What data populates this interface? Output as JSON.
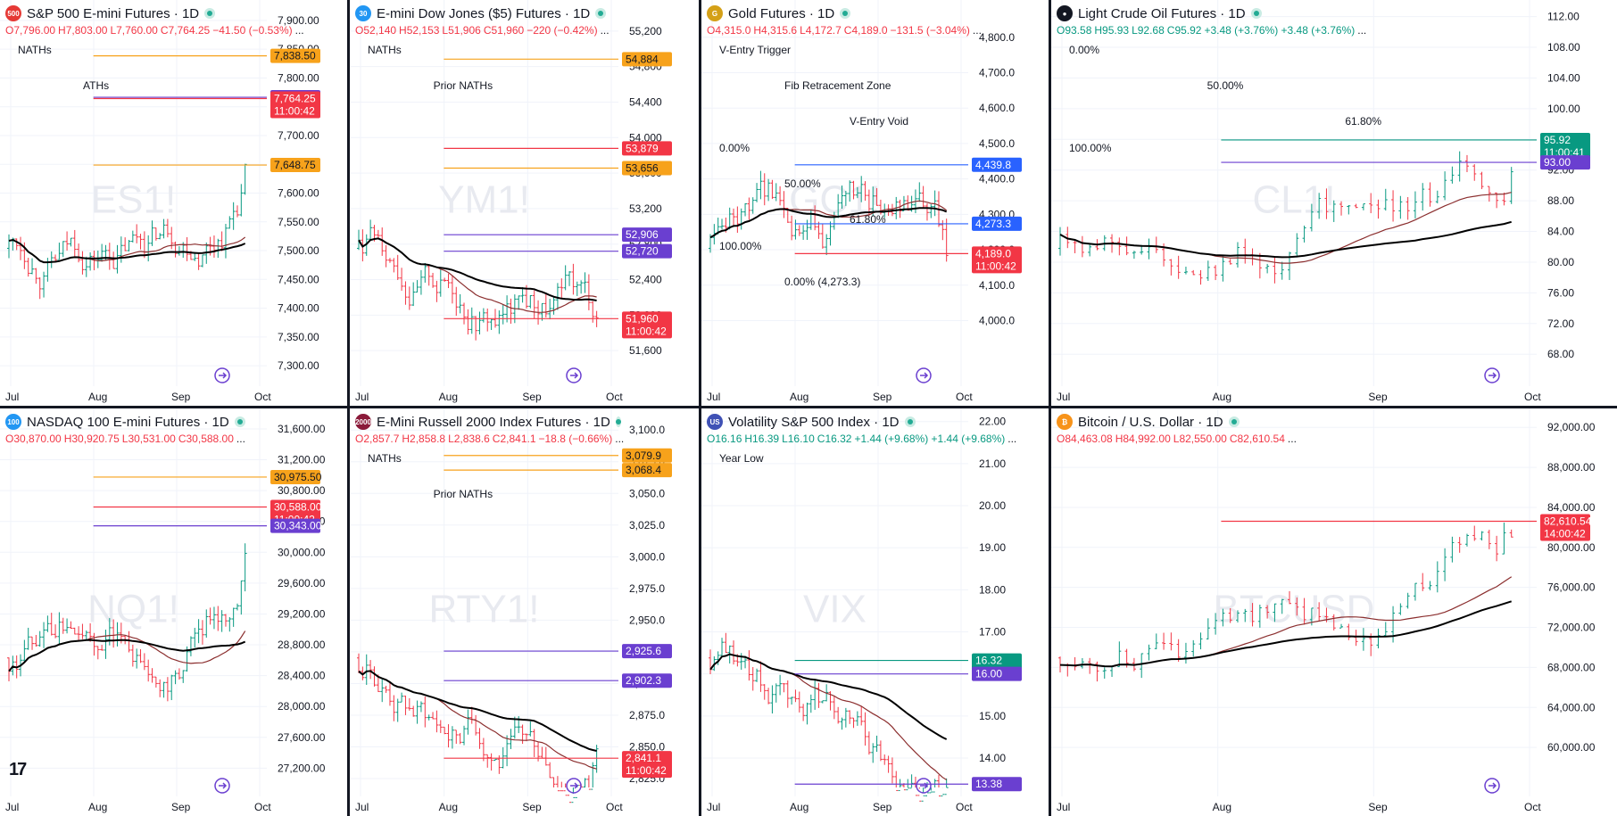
{
  "panels": [
    {
      "id": "es",
      "title": "S&P 500 E-mini Futures · 1D",
      "icon_text": "500",
      "icon_color": "#e53935",
      "ohlc": {
        "o": "O7,796.00",
        "h": "H7,803.00",
        "l": "L7,760.00",
        "c": "C7,764.25",
        "chg": "−41.50 (−0.53%)",
        "dir": "neg"
      },
      "watermark": "ES1!",
      "price_labels": [
        "7,900.00",
        "7,850.00",
        "7,800.00",
        "7,750.00",
        "7,700.00",
        "7,650.00",
        "7,600.00",
        "7,550.00",
        "7,500.00",
        "7,450.00",
        "7,400.00",
        "7,350.00",
        "7,300.00"
      ],
      "yrange": [
        7280,
        7920
      ],
      "time_labels": [
        "Jul",
        "Aug",
        "Sep",
        "Oct"
      ],
      "badges": [
        {
          "value": 7838.5,
          "text": "7,838.50",
          "color": "#f7a21b",
          "textcolor": "#131722"
        },
        {
          "value": 7766.5,
          "text": "7,766.50",
          "color": "#6a3fd0",
          "textcolor": "#ffffff"
        },
        {
          "value": 7764.25,
          "text": "7,764.25",
          "sub": "11:00:42",
          "color": "#f23645",
          "textcolor": "#ffffff"
        },
        {
          "value": 7648.75,
          "text": "7,648.75",
          "color": "#f7a21b",
          "textcolor": "#131722"
        }
      ],
      "annotations": [
        {
          "text": "NATHs"
        },
        {
          "text": "ATHs"
        }
      ]
    },
    {
      "id": "ym",
      "title": "E-mini Dow Jones ($5) Futures · 1D",
      "icon_text": "30",
      "icon_color": "#2196f3",
      "ohlc": {
        "o": "O52,140",
        "h": "H52,153",
        "l": "L51,906",
        "c": "C51,960",
        "chg": "−220 (−0.42%)",
        "dir": "neg"
      },
      "watermark": "YM1!",
      "price_labels": [
        "55,200",
        "54,800",
        "54,400",
        "54,000",
        "53,600",
        "53,200",
        "52,800",
        "52,400",
        "52,000",
        "51,600"
      ],
      "yrange": [
        51300,
        55450
      ],
      "time_labels": [
        "Jul",
        "Aug",
        "Sep",
        "Oct"
      ],
      "badges": [
        {
          "value": 54884,
          "text": "54,884",
          "color": "#f7a21b",
          "textcolor": "#131722"
        },
        {
          "value": 53879,
          "text": "53,879",
          "color": "#f23645",
          "textcolor": "#ffffff"
        },
        {
          "value": 53656,
          "text": "53,656",
          "color": "#f7a21b",
          "textcolor": "#131722"
        },
        {
          "value": 52906,
          "text": "52,906",
          "color": "#6a3fd0",
          "textcolor": "#ffffff"
        },
        {
          "value": 52720,
          "text": "52,720",
          "color": "#6a3fd0",
          "textcolor": "#ffffff"
        },
        {
          "value": 51960,
          "text": "51,960",
          "sub": "11:00:42",
          "color": "#f23645",
          "textcolor": "#ffffff"
        }
      ],
      "annotations": [
        {
          "text": "NATHs"
        },
        {
          "text": "Prior NATHs"
        }
      ]
    },
    {
      "id": "gc",
      "title": "Gold Futures · 1D",
      "icon_text": "G",
      "icon_color": "#d4a017",
      "ohlc": {
        "o": "O4,315.0",
        "h": "H4,315.6",
        "l": "L4,172.7",
        "c": "C4,189.0",
        "chg": "−131.5 (−3.04%)",
        "dir": "neg"
      },
      "watermark": "GC1!",
      "price_labels": [
        "4,800.0",
        "4,700.0",
        "4,600.0",
        "4,500.0",
        "4,400.0",
        "4,300.0",
        "4,200.0",
        "4,100.0",
        "4,000.0"
      ],
      "yrange": [
        3840,
        4880
      ],
      "time_labels": [
        "Jul",
        "Aug",
        "Sep",
        "Oct"
      ],
      "badges": [
        {
          "value": 4439.8,
          "text": "4,439.8",
          "color": "#2962ff",
          "textcolor": "#ffffff"
        },
        {
          "value": 4273.3,
          "text": "4,273.3",
          "color": "#2962ff",
          "textcolor": "#ffffff"
        },
        {
          "value": 4189.0,
          "text": "4,189.0",
          "sub": "11:00:42",
          "color": "#f23645",
          "textcolor": "#ffffff"
        }
      ],
      "annotations": [
        {
          "text": "V-Entry Trigger"
        },
        {
          "text": "Fib Retracement Zone"
        },
        {
          "text": "V-Entry Void"
        },
        {
          "text": "0.00%"
        },
        {
          "text": "50.00%"
        },
        {
          "text": "61.80%"
        },
        {
          "text": "100.00%"
        },
        {
          "text": "0.00% (4,273.3)"
        }
      ]
    },
    {
      "id": "cl",
      "title": "Light Crude Oil Futures · 1D",
      "icon_text": "●",
      "icon_color": "#131722",
      "ohlc": {
        "o": "O93.58",
        "h": "H95.93",
        "l": "L92.68",
        "c": "C95.92",
        "chg": "+3.48 (+3.76%) +3.48 (+3.76%)",
        "dir": "pos"
      },
      "watermark": "CL1!",
      "price_labels": [
        "112.00",
        "108.00",
        "104.00",
        "100.00",
        "96.00",
        "92.00",
        "88.00",
        "84.00",
        "80.00",
        "76.00",
        "72.00",
        "68.00"
      ],
      "yrange": [
        65,
        113
      ],
      "time_labels": [
        "Jul",
        "Aug",
        "Sep",
        "Oct"
      ],
      "badges": [
        {
          "value": 95.92,
          "text": "95.92",
          "sub": "11:00:41",
          "color": "#089981",
          "textcolor": "#ffffff"
        },
        {
          "value": 93.0,
          "text": "93.00",
          "color": "#6a3fd0",
          "textcolor": "#ffffff"
        }
      ],
      "annotations": [
        {
          "text": "0.00%"
        },
        {
          "text": "50.00%"
        },
        {
          "text": "61.80%"
        },
        {
          "text": "100.00%"
        }
      ]
    },
    {
      "id": "nq",
      "title": "NASDAQ 100 E-mini Futures · 1D",
      "icon_text": "100",
      "icon_color": "#2196f3",
      "ohlc": {
        "o": "O30,870.00",
        "h": "H30,920.75",
        "l": "L30,531.00",
        "c": "C30,588.00",
        "chg": "",
        "dir": "neg"
      },
      "watermark": "NQ1!",
      "price_labels": [
        "31,600.00",
        "31,200.00",
        "30,800.00",
        "30,400.00",
        "30,000.00",
        "29,600.00",
        "29,200.00",
        "28,800.00",
        "28,400.00",
        "28,000.00",
        "27,600.00",
        "27,200.00"
      ],
      "yrange": [
        26950,
        31750
      ],
      "time_labels": [
        "Jul",
        "Aug",
        "Sep",
        "Oct"
      ],
      "badges": [
        {
          "value": 30975.5,
          "text": "30,975.50",
          "color": "#f7a21b",
          "textcolor": "#131722"
        },
        {
          "value": 30588.0,
          "text": "30,588.00",
          "sub": "11:00:42",
          "color": "#f23645",
          "textcolor": "#ffffff"
        },
        {
          "value": 30343.0,
          "text": "30,343.00",
          "color": "#6a3fd0",
          "textcolor": "#ffffff"
        }
      ],
      "annotations": []
    },
    {
      "id": "rty",
      "title": "E-Mini Russell 2000 Index Futures · 1D",
      "icon_text": "2000",
      "icon_color": "#8b1a3a",
      "ohlc": {
        "o": "O2,857.7",
        "h": "H2,858.8",
        "l": "L2,838.6",
        "c": "C2,841.1",
        "chg": "−18.8 (−0.66%)",
        "dir": "neg"
      },
      "watermark": "RTY1!",
      "price_labels": [
        "3,100.0",
        "3,075.0",
        "3,050.0",
        "3,025.0",
        "3,000.0",
        "2,975.0",
        "2,950.0",
        "2,925.0",
        "2,900.0",
        "2,875.0",
        "2,850.0",
        "2,825.0"
      ],
      "yrange": [
        2818,
        3110
      ],
      "time_labels": [
        "Jul",
        "Aug",
        "Sep",
        "Oct"
      ],
      "badges": [
        {
          "value": 3079.9,
          "text": "3,079.9",
          "color": "#f7a21b",
          "textcolor": "#131722"
        },
        {
          "value": 3068.4,
          "text": "3,068.4",
          "color": "#f7a21b",
          "textcolor": "#131722"
        },
        {
          "value": 2925.6,
          "text": "2,925.6",
          "color": "#6a3fd0",
          "textcolor": "#ffffff"
        },
        {
          "value": 2902.3,
          "text": "2,902.3",
          "color": "#6a3fd0",
          "textcolor": "#ffffff"
        },
        {
          "value": 2841.1,
          "text": "2,841.1",
          "sub": "11:00:42",
          "color": "#f23645",
          "textcolor": "#ffffff"
        }
      ],
      "annotations": [
        {
          "text": "NATHs"
        },
        {
          "text": "Prior NATHs"
        }
      ]
    },
    {
      "id": "vix",
      "title": "Volatility S&P 500 Index · 1D",
      "icon_text": "US",
      "icon_color": "#3f51b5",
      "ohlc": {
        "o": "O16.16",
        "h": "H16.39",
        "l": "L16.10",
        "c": "C16.32",
        "chg": "+1.44 (+9.68%) +1.44 (+9.68%)",
        "dir": "pos"
      },
      "watermark": "VIX",
      "price_labels": [
        "22.00",
        "21.00",
        "20.00",
        "19.00",
        "18.00",
        "17.00",
        "16.00",
        "15.00",
        "14.00"
      ],
      "yrange": [
        13.3,
        22.1
      ],
      "time_labels": [
        "Jul",
        "Aug",
        "Sep",
        "Oct"
      ],
      "badges": [
        {
          "value": 16.32,
          "text": "16.32",
          "sub": "10:16:42",
          "color": "#089981",
          "textcolor": "#ffffff"
        },
        {
          "value": 16.0,
          "text": "16.00",
          "color": "#6a3fd0",
          "textcolor": "#ffffff"
        },
        {
          "value": 13.38,
          "text": "13.38",
          "color": "#6a3fd0",
          "textcolor": "#ffffff"
        }
      ],
      "annotations": [
        {
          "text": "Year Low"
        }
      ]
    },
    {
      "id": "btc",
      "title": "Bitcoin / U.S. Dollar · 1D",
      "icon_text": "₿",
      "icon_color": "#f7931a",
      "ohlc": {
        "o": "O84,463.08",
        "h": "H84,992.00",
        "l": "L82,550.00",
        "c": "C82,610.54",
        "chg": "",
        "dir": "neg"
      },
      "watermark": "BTCUSD",
      "price_labels": [
        "92,000.00",
        "88,000.00",
        "84,000.00",
        "80,000.00",
        "76,000.00",
        "72,000.00",
        "68,000.00",
        "64,000.00",
        "60,000.00"
      ],
      "yrange": [
        56000,
        93000
      ],
      "time_labels": [
        "Jul",
        "Aug",
        "Sep",
        "Oct"
      ],
      "badges": [
        {
          "value": 82610.54,
          "text": "82,610.54",
          "sub": "14:00:42",
          "color": "#f23645",
          "textcolor": "#ffffff"
        }
      ],
      "annotations": []
    }
  ],
  "colors": {
    "up": "#089981",
    "down": "#f23645",
    "grid": "#f0f3fa",
    "axis_text": "#131722",
    "ma_brown": "#8b2e2e",
    "ma_black": "#000000",
    "ma_blue": "#2b5fd9"
  },
  "logo_text": "17"
}
